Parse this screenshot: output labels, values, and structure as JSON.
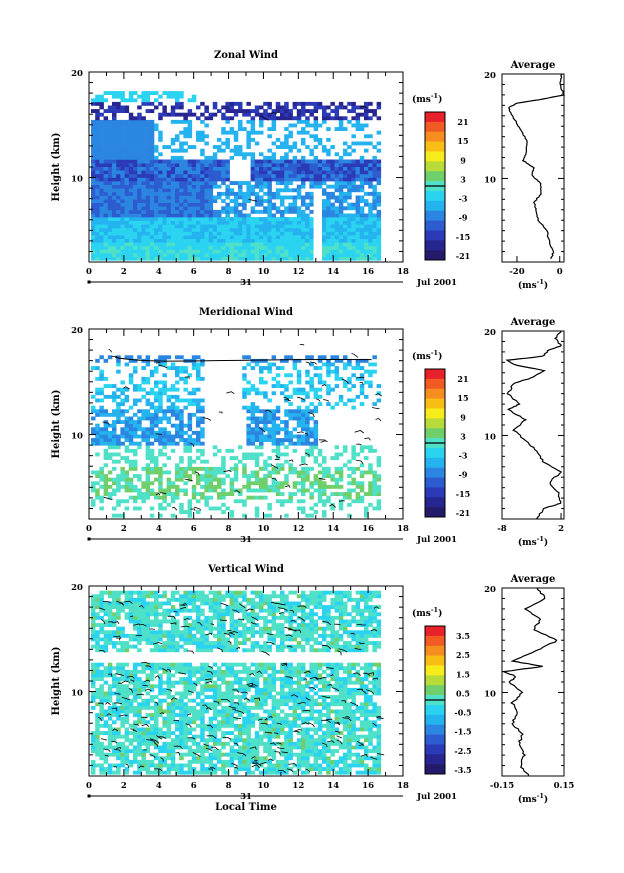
{
  "chart_data": [
    {
      "type": "heatmap",
      "title": "Zonal Wind",
      "ylabel": "Height (km)",
      "y_ticks": [
        "20",
        "10"
      ],
      "x_ticks": [
        "0",
        "2",
        "4",
        "6",
        "8",
        "10",
        "12",
        "14",
        "16",
        "18"
      ],
      "xlim": [
        0,
        18
      ],
      "ylim": [
        2,
        20
      ],
      "date_marker": "31",
      "month_label": "Jul 2001",
      "colorbar": {
        "unit": "(ms",
        "unit_exp": "-1",
        "unit_close": ")",
        "labels": [
          "21",
          "15",
          "9",
          "3",
          "-3",
          "-9",
          "-15",
          "-21"
        ],
        "colors": [
          "#e8202a",
          "#f15a22",
          "#f68d1f",
          "#f8be16",
          "#f7ec1b",
          "#b7dc3a",
          "#6fcf6a",
          "#4fe0c8",
          "#2ad4f0",
          "#24b3ef",
          "#2a86e0",
          "#2d5cd0",
          "#2b3bb8",
          "#27258f",
          "#241a6a"
        ]
      },
      "average": {
        "title": "Average",
        "x_ticks": [
          "-20",
          "0"
        ],
        "y_ticks": [
          "20",
          "10"
        ],
        "xlabel": "(ms",
        "xlabel_exp": "-1",
        "xlabel_close": ")",
        "xlim": [
          -27,
          2
        ],
        "profile": [
          [
            -4,
            2.3
          ],
          [
            -3,
            3
          ],
          [
            -5,
            4
          ],
          [
            -6,
            5
          ],
          [
            -10,
            6
          ],
          [
            -11,
            7
          ],
          [
            -12,
            7.7
          ],
          [
            -9,
            8.5
          ],
          [
            -9,
            9.5
          ],
          [
            -13,
            10.3
          ],
          [
            -12,
            11
          ],
          [
            -17,
            11.7
          ],
          [
            -16,
            12.4
          ],
          [
            -15,
            13.5
          ],
          [
            -18,
            14.5
          ],
          [
            -20,
            15.3
          ],
          [
            -23,
            16.3
          ],
          [
            -24,
            16.8
          ],
          [
            -20,
            17.2
          ],
          [
            -8,
            17.6
          ],
          [
            2,
            18
          ],
          [
            0,
            19
          ],
          [
            1,
            20
          ]
        ]
      }
    },
    {
      "type": "heatmap",
      "title": "Meridional Wind",
      "ylabel": "Height (km)",
      "y_ticks": [
        "20",
        "10"
      ],
      "x_ticks": [
        "0",
        "2",
        "4",
        "6",
        "8",
        "10",
        "12",
        "14",
        "16",
        "18"
      ],
      "xlim": [
        0,
        18
      ],
      "ylim": [
        2,
        20
      ],
      "date_marker": "31",
      "month_label": "Jul 2001",
      "colorbar": {
        "unit": "(ms",
        "unit_exp": "-1",
        "unit_close": ")",
        "labels": [
          "21",
          "15",
          "9",
          "3",
          "-3",
          "-9",
          "-15",
          "-21"
        ],
        "colors": [
          "#e8202a",
          "#f15a22",
          "#f68d1f",
          "#f8be16",
          "#f7ec1b",
          "#b7dc3a",
          "#6fcf6a",
          "#4fe0c8",
          "#2ad4f0",
          "#24b3ef",
          "#2a86e0",
          "#2d5cd0",
          "#2b3bb8",
          "#27258f",
          "#241a6a"
        ]
      },
      "average": {
        "title": "Average",
        "x_ticks": [
          "-8",
          "2"
        ],
        "y_ticks": [
          "20",
          "10"
        ],
        "xlabel": "(ms",
        "xlabel_exp": "-1",
        "xlabel_close": ")",
        "xlim": [
          -8,
          2.5
        ],
        "profile": [
          [
            -2,
            2
          ],
          [
            -1,
            3
          ],
          [
            2,
            3.5
          ],
          [
            1.5,
            4.5
          ],
          [
            0,
            5.5
          ],
          [
            2,
            6.5
          ],
          [
            -1,
            7.5
          ],
          [
            -2,
            8.5
          ],
          [
            -4,
            9.5
          ],
          [
            -6,
            10.5
          ],
          [
            -4,
            11.5
          ],
          [
            -7,
            12.5
          ],
          [
            -5,
            13
          ],
          [
            -7,
            14
          ],
          [
            -6,
            15
          ],
          [
            -3,
            15.5
          ],
          [
            -1,
            16.2
          ],
          [
            -6,
            16.8
          ],
          [
            -7,
            17.2
          ],
          [
            -1,
            17.6
          ],
          [
            0,
            18.2
          ],
          [
            2,
            18.6
          ],
          [
            1,
            19.3
          ],
          [
            2,
            20
          ]
        ]
      }
    },
    {
      "type": "heatmap",
      "title": "Vertical Wind",
      "ylabel": "Height (km)",
      "xlabel": "Local Time",
      "y_ticks": [
        "20",
        "10"
      ],
      "x_ticks": [
        "0",
        "2",
        "4",
        "6",
        "8",
        "10",
        "12",
        "14",
        "16",
        "18"
      ],
      "xlim": [
        0,
        18
      ],
      "ylim": [
        2,
        20
      ],
      "date_marker": "31",
      "month_label": "Jul 2001",
      "colorbar": {
        "unit": "(ms",
        "unit_exp": "-1",
        "unit_close": ")",
        "labels": [
          "3.5",
          "2.5",
          "1.5",
          "0.5",
          "-0.5",
          "-1.5",
          "-2.5",
          "-3.5"
        ],
        "colors": [
          "#e8202a",
          "#f15a22",
          "#f68d1f",
          "#f8be16",
          "#f7ec1b",
          "#b7dc3a",
          "#6fcf6a",
          "#4fe0c8",
          "#2ad4f0",
          "#24b3ef",
          "#2a86e0",
          "#2d5cd0",
          "#2b3bb8",
          "#27258f",
          "#241a6a"
        ]
      },
      "average": {
        "title": "Average",
        "x_ticks": [
          "-0.15",
          "0.15"
        ],
        "y_ticks": [
          "20",
          "10"
        ],
        "xlabel": "(ms",
        "xlabel_exp": "-1",
        "xlabel_close": ")",
        "xlim": [
          -0.15,
          0.15
        ],
        "profile": [
          [
            -0.02,
            2
          ],
          [
            -0.06,
            3
          ],
          [
            -0.04,
            4
          ],
          [
            -0.07,
            5
          ],
          [
            -0.05,
            6
          ],
          [
            -0.1,
            7
          ],
          [
            -0.08,
            8
          ],
          [
            -0.1,
            9
          ],
          [
            -0.05,
            10
          ],
          [
            -0.12,
            11
          ],
          [
            -0.08,
            11.5
          ],
          [
            -0.14,
            12
          ],
          [
            0.05,
            12.5
          ],
          [
            -0.1,
            13
          ],
          [
            0.02,
            14
          ],
          [
            0.12,
            15
          ],
          [
            0,
            16
          ],
          [
            0.04,
            17
          ],
          [
            -0.04,
            18
          ],
          [
            0.06,
            19
          ],
          [
            0.02,
            20
          ]
        ]
      }
    }
  ]
}
